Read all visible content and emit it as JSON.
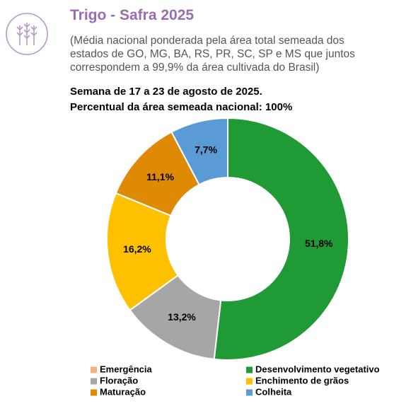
{
  "chart_data": {
    "type": "donut",
    "title": "Trigo - Safra 2025",
    "subtitle": "(Média nacional ponderada pela área total semeada dos estados de GO, MG, BA, RS, PR, SC, SP e MS que juntos correspondem a 99,9% da área cultivada do Brasil)",
    "headlines": [
      "Semana de 17 a 23 de agosto de 2025.",
      "Percentual da área semeada nacional: 100%"
    ],
    "categories": [
      "Emergência",
      "Desenvolvimento vegetativo",
      "Floração",
      "Enchimento de grãos",
      "Maturação",
      "Colheita"
    ],
    "values": [
      0,
      51.8,
      13.2,
      16.2,
      11.1,
      7.7
    ],
    "value_labels": [
      null,
      "51,8%",
      "13,2%",
      "16,2%",
      "11,1%",
      "7,7%"
    ],
    "colors": [
      "#f4b183",
      "#1f9a34",
      "#a6a6a6",
      "#ffc000",
      "#de8a05",
      "#5b9bd5"
    ]
  }
}
